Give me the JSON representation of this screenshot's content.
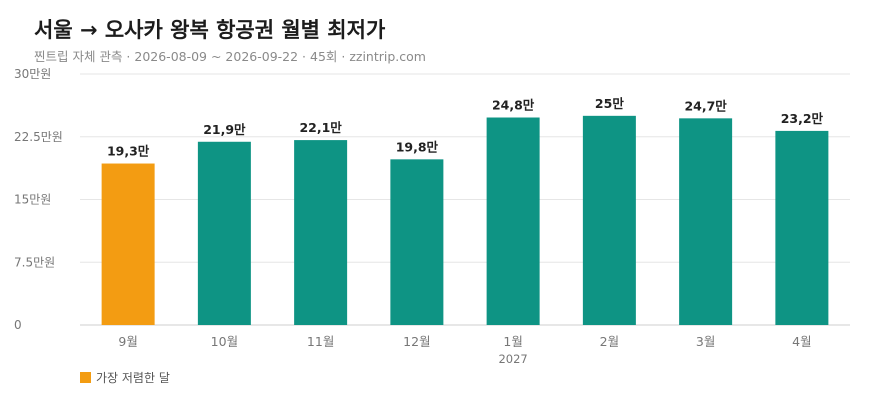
{
  "header": {
    "title": "서울 → 오사카 왕복 항공권 월별 최저가",
    "subtitle": "찐트립 자체 관측 · 2026-08-09 ~ 2026-09-22 · 45회 · zzintrip.com"
  },
  "legend": {
    "label": "가장 저렴한 달",
    "color": "#f39c12"
  },
  "colors": {
    "bar": "#0e9484",
    "highlight": "#f39c12",
    "grid": "#e6e6e6",
    "axis_text": "#777777"
  },
  "chart_data": {
    "type": "bar",
    "title": "서울 → 오사카 왕복 항공권 월별 최저가",
    "categories": [
      "9월",
      "10월",
      "11월",
      "12월",
      "1월",
      "2월",
      "3월",
      "4월"
    ],
    "category_sublabels": [
      "",
      "",
      "",
      "",
      "2027",
      "",
      "",
      ""
    ],
    "values": [
      19.3,
      21.9,
      22.1,
      19.8,
      24.8,
      25,
      24.7,
      23.2
    ],
    "value_labels": [
      "19,3만",
      "21,9만",
      "22,1만",
      "19,8만",
      "24,8만",
      "25만",
      "24,7만",
      "23,2만"
    ],
    "highlight_index": 0,
    "ylim": [
      0,
      30
    ],
    "yticks": [
      0,
      7.5,
      15,
      22.5,
      30
    ],
    "ytick_labels": [
      "0",
      "7.5만원",
      "15만원",
      "22.5만원",
      "30만원"
    ],
    "grid": true,
    "legend_position": "bottom-left"
  }
}
